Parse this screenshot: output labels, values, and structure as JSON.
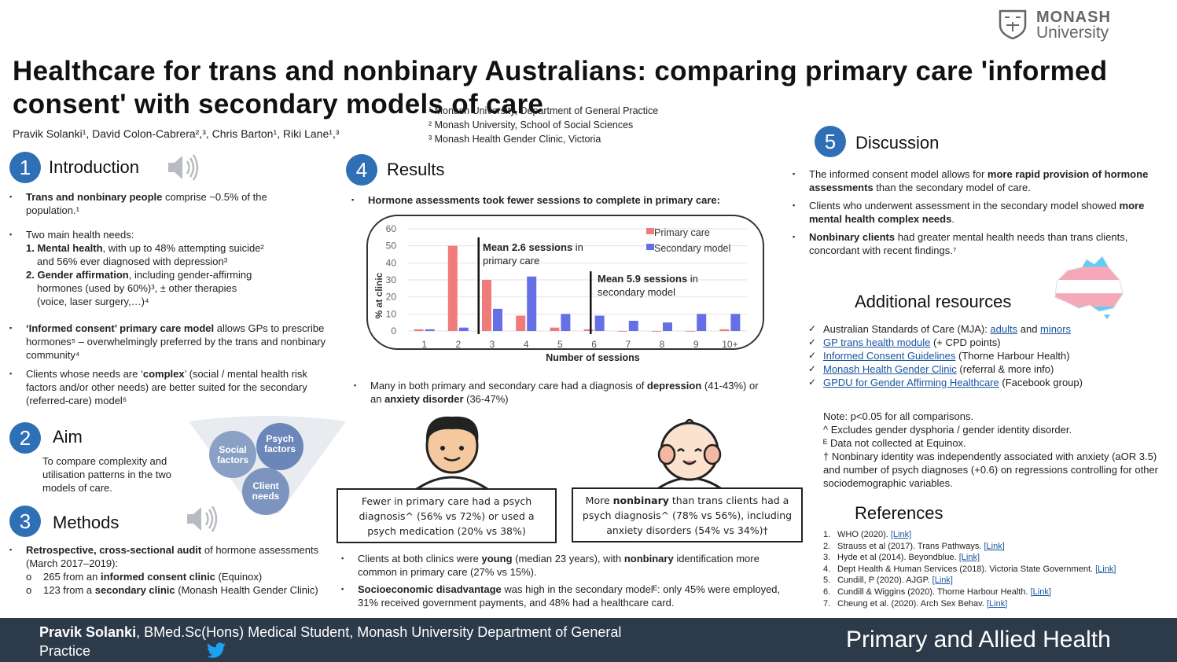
{
  "header": {
    "title": "Healthcare for trans and nonbinary Australians: comparing primary care 'informed consent' with secondary models of care",
    "authors": "Pravik Solanki¹, David Colon-Cabrera²,³, Chris Barton¹, Riki Lane¹,³",
    "affiliations": [
      "¹ Monash University, Department of General Practice",
      "² Monash University, School of Social Sciences",
      "³ Monash Health Gender Clinic, Victoria"
    ],
    "logo_line1": "MONASH",
    "logo_line2": "University"
  },
  "intro": {
    "num": "1",
    "title": "Introduction",
    "b1_bold": "Trans and nonbinary people",
    "b1_rest": " comprise ~0.5% of the population.¹",
    "b2_head": "Two main health needs:",
    "b2_l1_bold": "1. Mental health",
    "b2_l1_rest": ", with up to 48% attempting suicide²",
    "b2_l2": "and 56% ever diagnosed with depression³",
    "b2_l3_bold": "2. Gender affirmation",
    "b2_l3_rest": ", including gender-affirming",
    "b2_l4": "hormones (used by 60%)³, ± other therapies",
    "b2_l5": "(voice, laser surgery,…)⁴",
    "b3_bold": "‘Informed consent’ primary care model",
    "b3_rest": " allows GPs to prescribe hormones⁵ – overwhelmingly preferred by the trans and nonbinary community⁴",
    "b4_pre": "Clients whose needs are ‘",
    "b4_bold": "complex",
    "b4_rest": "’ (social / mental health risk factors and/or other needs) are better suited for the secondary (referred-care) model⁶"
  },
  "aim": {
    "num": "2",
    "title": "Aim",
    "text": "To compare complexity and utilisation patterns in the two models of care.",
    "circles": [
      "Social factors",
      "Psych factors",
      "Client needs"
    ]
  },
  "methods": {
    "num": "3",
    "title": "Methods",
    "b1_bold": "Retrospective, cross-sectional audit",
    "b1_rest": " of hormone assessments (March 2017–2019):",
    "s1_pre": "265 from an ",
    "s1_bold": "informed consent clinic",
    "s1_rest": " (Equinox)",
    "s2_pre": "123 from a ",
    "s2_bold": "secondary clinic",
    "s2_rest": " (Monash Health Gender Clinic)"
  },
  "results": {
    "num": "4",
    "title": "Results",
    "chart_heading": "Hormone assessments took fewer sessions to complete in primary care:",
    "annot_primary_bold": "Mean 2.6 sessions",
    "annot_primary_rest": " in primary care",
    "annot_secondary_bold": "Mean 5.9 sessions",
    "annot_secondary_rest": " in secondary model",
    "b_depression_pre": "Many in both primary and secondary care had a diagnosis of ",
    "b_depression_bold": "depression",
    "b_depression_mid": " (41-43%) or an ",
    "b_anxiety_bold": "anxiety disorder",
    "b_anxiety_rest": " (36-47%)",
    "callout_left": "Fewer in primary care had a psych diagnosis^ (56% vs 72%) or used a psych medication (20% vs 38%)",
    "callout_right_pre": "More ",
    "callout_right_bold": "nonbinary",
    "callout_right_rest": " than trans clients had a psych diagnosis^ (78% vs 56%), including anxiety disorders (54% vs 34%)†",
    "b_young_pre": "Clients at both clinics were ",
    "b_young_bold": "young",
    "b_young_mid": " (median 23 years), with ",
    "b_young_bold2": "nonbinary",
    "b_young_rest": " identification more common in primary care (27% vs 15%).",
    "b_socio_bold": "Socioeconomic disadvantage",
    "b_socio_rest": " was high in the secondary modelᴱ: only 45% were employed, 31% received government payments, and 48% had a healthcare card."
  },
  "chart_data": {
    "type": "bar",
    "categories": [
      "1",
      "2",
      "3",
      "4",
      "5",
      "6",
      "7",
      "8",
      "9",
      "10+"
    ],
    "series": [
      {
        "name": "Primary care",
        "color": "#f07b7b",
        "values": [
          1,
          50,
          30,
          9,
          2,
          1,
          0,
          0,
          0,
          1
        ]
      },
      {
        "name": "Secondary model",
        "color": "#6670e6",
        "values": [
          1,
          2,
          13,
          32,
          10,
          9,
          6,
          5,
          10,
          10
        ]
      }
    ],
    "title": "",
    "xlabel": "Number of sessions",
    "ylabel": "% at clinic",
    "ylim": [
      0,
      60
    ],
    "yticks": [
      "0",
      "10",
      "20",
      "30",
      "40",
      "50",
      "60"
    ],
    "mean_primary": 2.6,
    "mean_secondary": 5.9,
    "legend_position": "top-right"
  },
  "discussion": {
    "num": "5",
    "title": "Discussion",
    "b1_pre": "The informed consent model allows for ",
    "b1_bold": "more rapid provision of hormone assessments",
    "b1_rest": " than the secondary model of care.",
    "b2_pre": "Clients who underwent assessment in the secondary model showed ",
    "b2_bold": "more mental health complex needs",
    "b2_rest": ".",
    "b3_bold": "Nonbinary clients",
    "b3_rest": " had greater mental health needs than trans clients, concordant with recent findings.⁷"
  },
  "resources": {
    "title": "Additional resources",
    "items": [
      {
        "pre": "Australian Standards of Care (MJA): ",
        "link1": "adults",
        "mid": " and ",
        "link2": "minors",
        "post": ""
      },
      {
        "pre": "",
        "link1": "GP trans health module",
        "mid": "",
        "link2": "",
        "post": " (+ CPD points)"
      },
      {
        "pre": "",
        "link1": "Informed Consent Guidelines",
        "mid": "",
        "link2": "",
        "post": " (Thorne Harbour Health)"
      },
      {
        "pre": "",
        "link1": "Monash Health Gender Clinic",
        "mid": "",
        "link2": "",
        "post": " (referral & more info)"
      },
      {
        "pre": "",
        "link1": "GPDU for Gender Affirming Healthcare",
        "mid": "",
        "link2": "",
        "post": " (Facebook group)"
      }
    ],
    "tick": "✓"
  },
  "notes": {
    "l1": "Note: p<0.05 for all comparisons.",
    "l2": "^ Excludes gender dysphoria / gender identity disorder.",
    "l3": "ᴱ Data not collected at Equinox.",
    "l4": "† Nonbinary identity was independently associated with anxiety (aOR 3.5) and number of psych diagnoses (+0.6) on regressions controlling for other sociodemographic variables."
  },
  "references": {
    "title": "References",
    "items": [
      {
        "n": "1.",
        "text": "WHO (2020). ",
        "link": "[Link]"
      },
      {
        "n": "2.",
        "text": "Strauss et al (2017). Trans Pathways. ",
        "link": "[Link]"
      },
      {
        "n": "3.",
        "text": "Hyde et al (2014). Beyondblue. ",
        "link": "[Link]"
      },
      {
        "n": "4.",
        "text": "Dept Health & Human Services (2018). Victoria State Government. ",
        "link": "[Link]"
      },
      {
        "n": "5.",
        "text": "Cundill, P (2020). AJGP. ",
        "link": "[Link]"
      },
      {
        "n": "6.",
        "text": "Cundill & Wiggins (2020). Thorne Harbour Health. ",
        "link": "[Link]"
      },
      {
        "n": "7.",
        "text": "Cheung et al. (2020). Arch Sex Behav. ",
        "link": "[Link]"
      }
    ]
  },
  "footer": {
    "name": "Pravik Solanki",
    "role": ", BMed.Sc(Hons) Medical Student, Monash University Department of General Practice",
    "right": "Primary and Allied Health"
  },
  "colors": {
    "accent": "#2f6fb5",
    "footer": "#2d3a4a",
    "primary": "#f07b7b",
    "secondary": "#6670e6"
  }
}
